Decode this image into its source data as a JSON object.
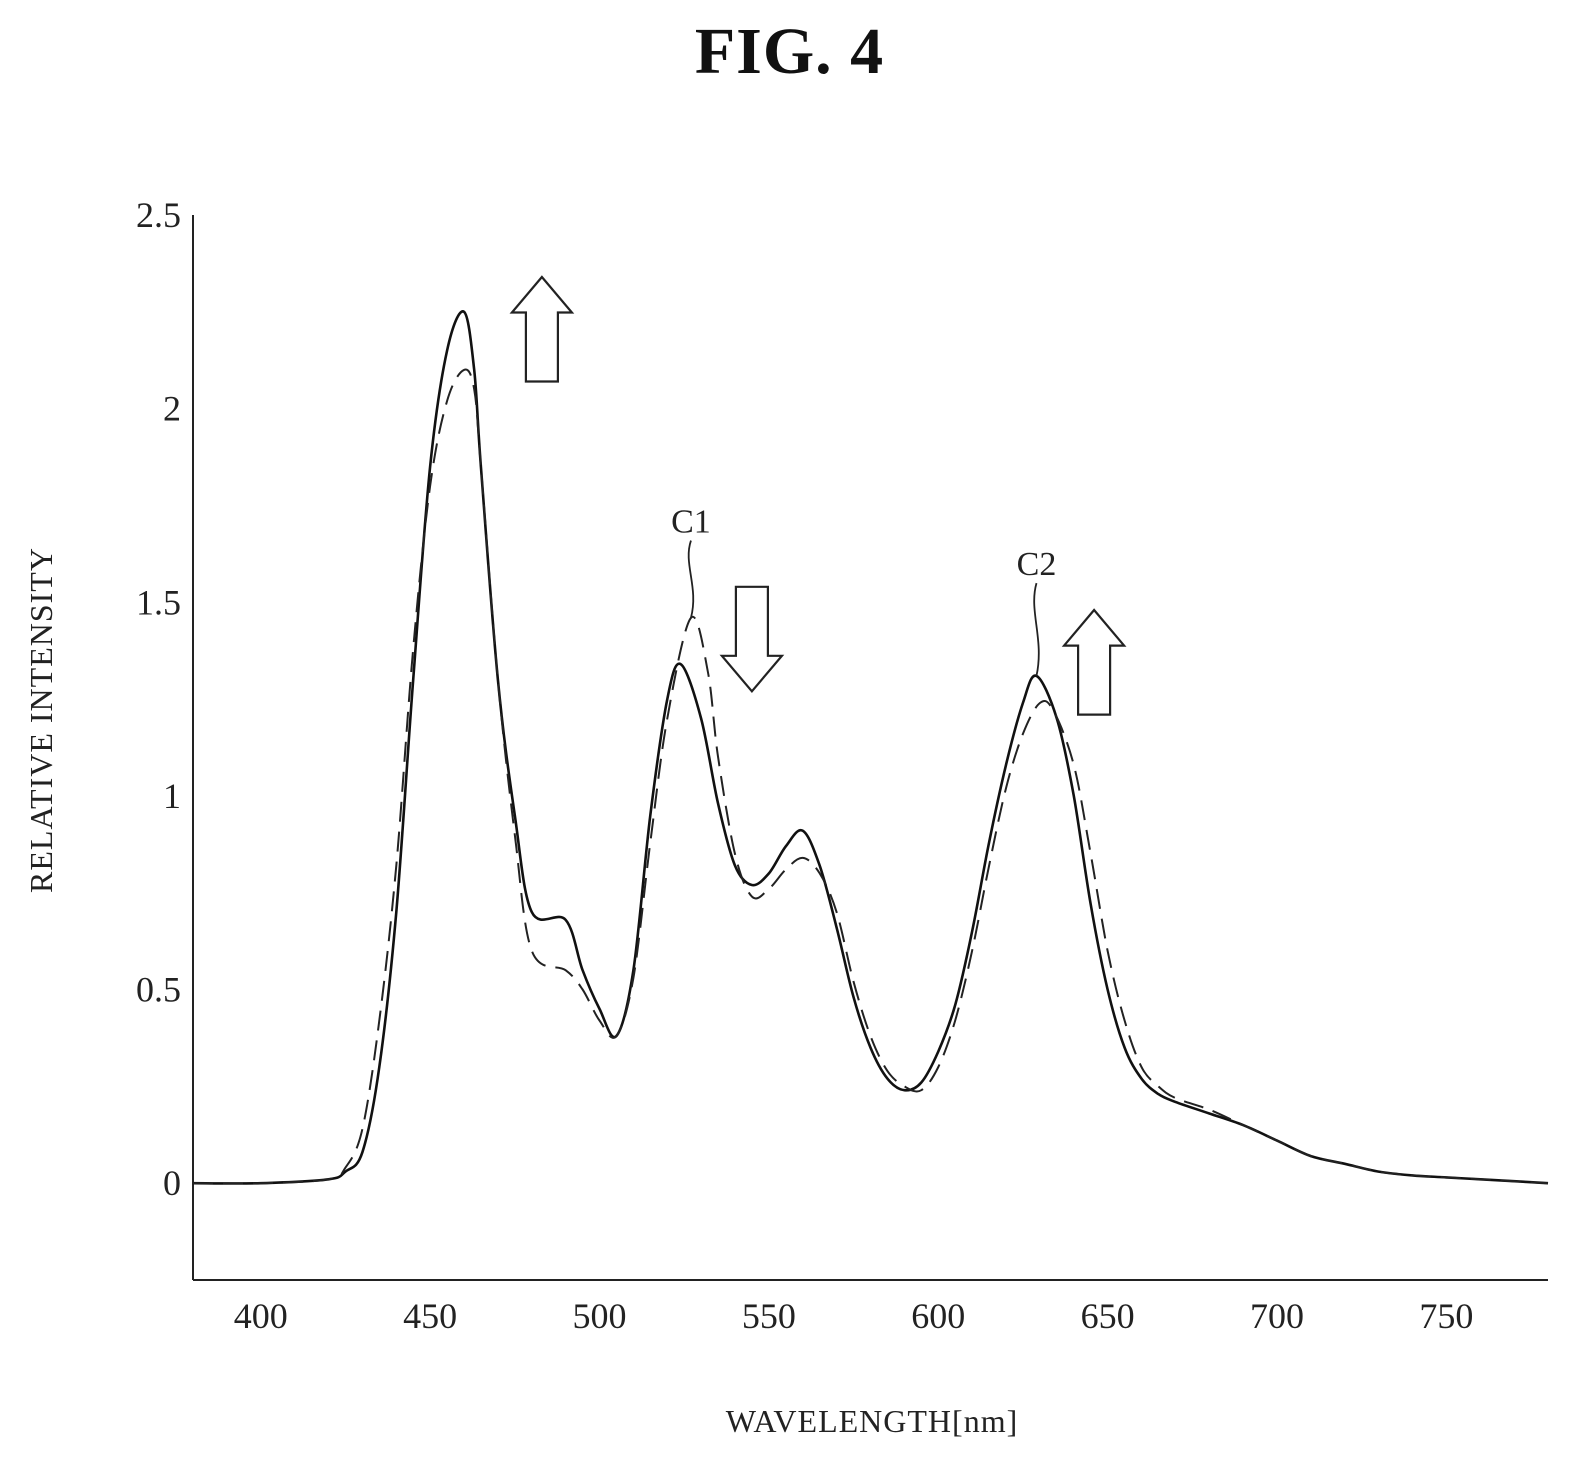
{
  "figure": {
    "title": "FIG. 4"
  },
  "chart_data": {
    "type": "line",
    "title": "FIG. 4",
    "xlabel": "WAVELENGTH[nm]",
    "ylabel": "RELATIVE INTENSITY",
    "xlim": [
      380,
      780
    ],
    "ylim": [
      -0.25,
      2.5
    ],
    "x_ticks": [
      400,
      450,
      500,
      550,
      600,
      650,
      700,
      750
    ],
    "x_tick_labels": [
      "400",
      "450",
      "500",
      "550",
      "600",
      "650",
      "700",
      "750"
    ],
    "y_ticks": [
      0,
      0.5,
      1,
      1.5,
      2,
      2.5
    ],
    "y_tick_labels": [
      "0",
      "0.5",
      "1",
      "1.5",
      "2",
      "2.5"
    ],
    "grid": false,
    "series": [
      {
        "style": "solid",
        "color": "#111111",
        "x": [
          380,
          400,
          420,
          425,
          430,
          435,
          440,
          445,
          450,
          455,
          460,
          463,
          465,
          470,
          475,
          480,
          490,
          495,
          500,
          505,
          510,
          515,
          520,
          524,
          530,
          535,
          540,
          545,
          550,
          555,
          560,
          565,
          570,
          575,
          580,
          585,
          590,
          595,
          600,
          605,
          610,
          615,
          620,
          625,
          629,
          635,
          640,
          645,
          650,
          655,
          660,
          665,
          670,
          680,
          690,
          700,
          710,
          720,
          730,
          740,
          750,
          760,
          770,
          780
        ],
        "y": [
          0,
          0,
          0.01,
          0.03,
          0.08,
          0.3,
          0.7,
          1.3,
          1.85,
          2.15,
          2.25,
          2.1,
          1.85,
          1.3,
          0.95,
          0.7,
          0.68,
          0.55,
          0.45,
          0.38,
          0.55,
          0.95,
          1.25,
          1.34,
          1.2,
          0.98,
          0.82,
          0.77,
          0.8,
          0.87,
          0.91,
          0.82,
          0.66,
          0.48,
          0.35,
          0.27,
          0.24,
          0.26,
          0.34,
          0.46,
          0.65,
          0.88,
          1.08,
          1.24,
          1.31,
          1.2,
          1.0,
          0.72,
          0.5,
          0.35,
          0.27,
          0.23,
          0.21,
          0.18,
          0.15,
          0.11,
          0.07,
          0.05,
          0.03,
          0.02,
          0.015,
          0.01,
          0.005,
          0
        ]
      },
      {
        "style": "dashed",
        "color": "#222222",
        "x": [
          380,
          400,
          420,
          425,
          430,
          435,
          440,
          445,
          450,
          455,
          460,
          463,
          465,
          470,
          475,
          480,
          490,
          495,
          500,
          505,
          510,
          515,
          520,
          527,
          532,
          535,
          540,
          545,
          550,
          555,
          560,
          565,
          570,
          575,
          580,
          585,
          590,
          595,
          600,
          605,
          610,
          615,
          620,
          625,
          630,
          634,
          640,
          645,
          650,
          655,
          660,
          665,
          670,
          680,
          690,
          700,
          710,
          720,
          730,
          740,
          750,
          760,
          770,
          780
        ],
        "y": [
          0,
          0,
          0.01,
          0.04,
          0.14,
          0.42,
          0.82,
          1.38,
          1.8,
          2.02,
          2.1,
          2.05,
          1.85,
          1.3,
          0.9,
          0.6,
          0.55,
          0.5,
          0.42,
          0.38,
          0.53,
          0.88,
          1.2,
          1.46,
          1.32,
          1.1,
          0.85,
          0.74,
          0.76,
          0.81,
          0.84,
          0.8,
          0.7,
          0.52,
          0.38,
          0.29,
          0.25,
          0.24,
          0.3,
          0.42,
          0.6,
          0.82,
          1.02,
          1.16,
          1.24,
          1.22,
          1.08,
          0.85,
          0.6,
          0.42,
          0.3,
          0.25,
          0.22,
          0.19,
          0.15,
          0.11,
          0.07,
          0.05,
          0.03,
          0.02,
          0.015,
          0.01,
          0.005,
          0
        ]
      }
    ],
    "annotations": [
      {
        "label": "C1",
        "x": 527,
        "y": 1.46,
        "label_x": 527,
        "label_y": 1.68
      },
      {
        "label": "C2",
        "x": 629,
        "y": 1.31,
        "label_x": 629,
        "label_y": 1.57
      }
    ],
    "arrows": [
      {
        "direction": "up",
        "x": 483,
        "y_top": 2.34,
        "y_bottom": 2.07
      },
      {
        "direction": "down",
        "x": 545,
        "y_top": 1.54,
        "y_bottom": 1.27
      },
      {
        "direction": "up",
        "x": 646,
        "y_top": 1.48,
        "y_bottom": 1.21
      }
    ]
  }
}
